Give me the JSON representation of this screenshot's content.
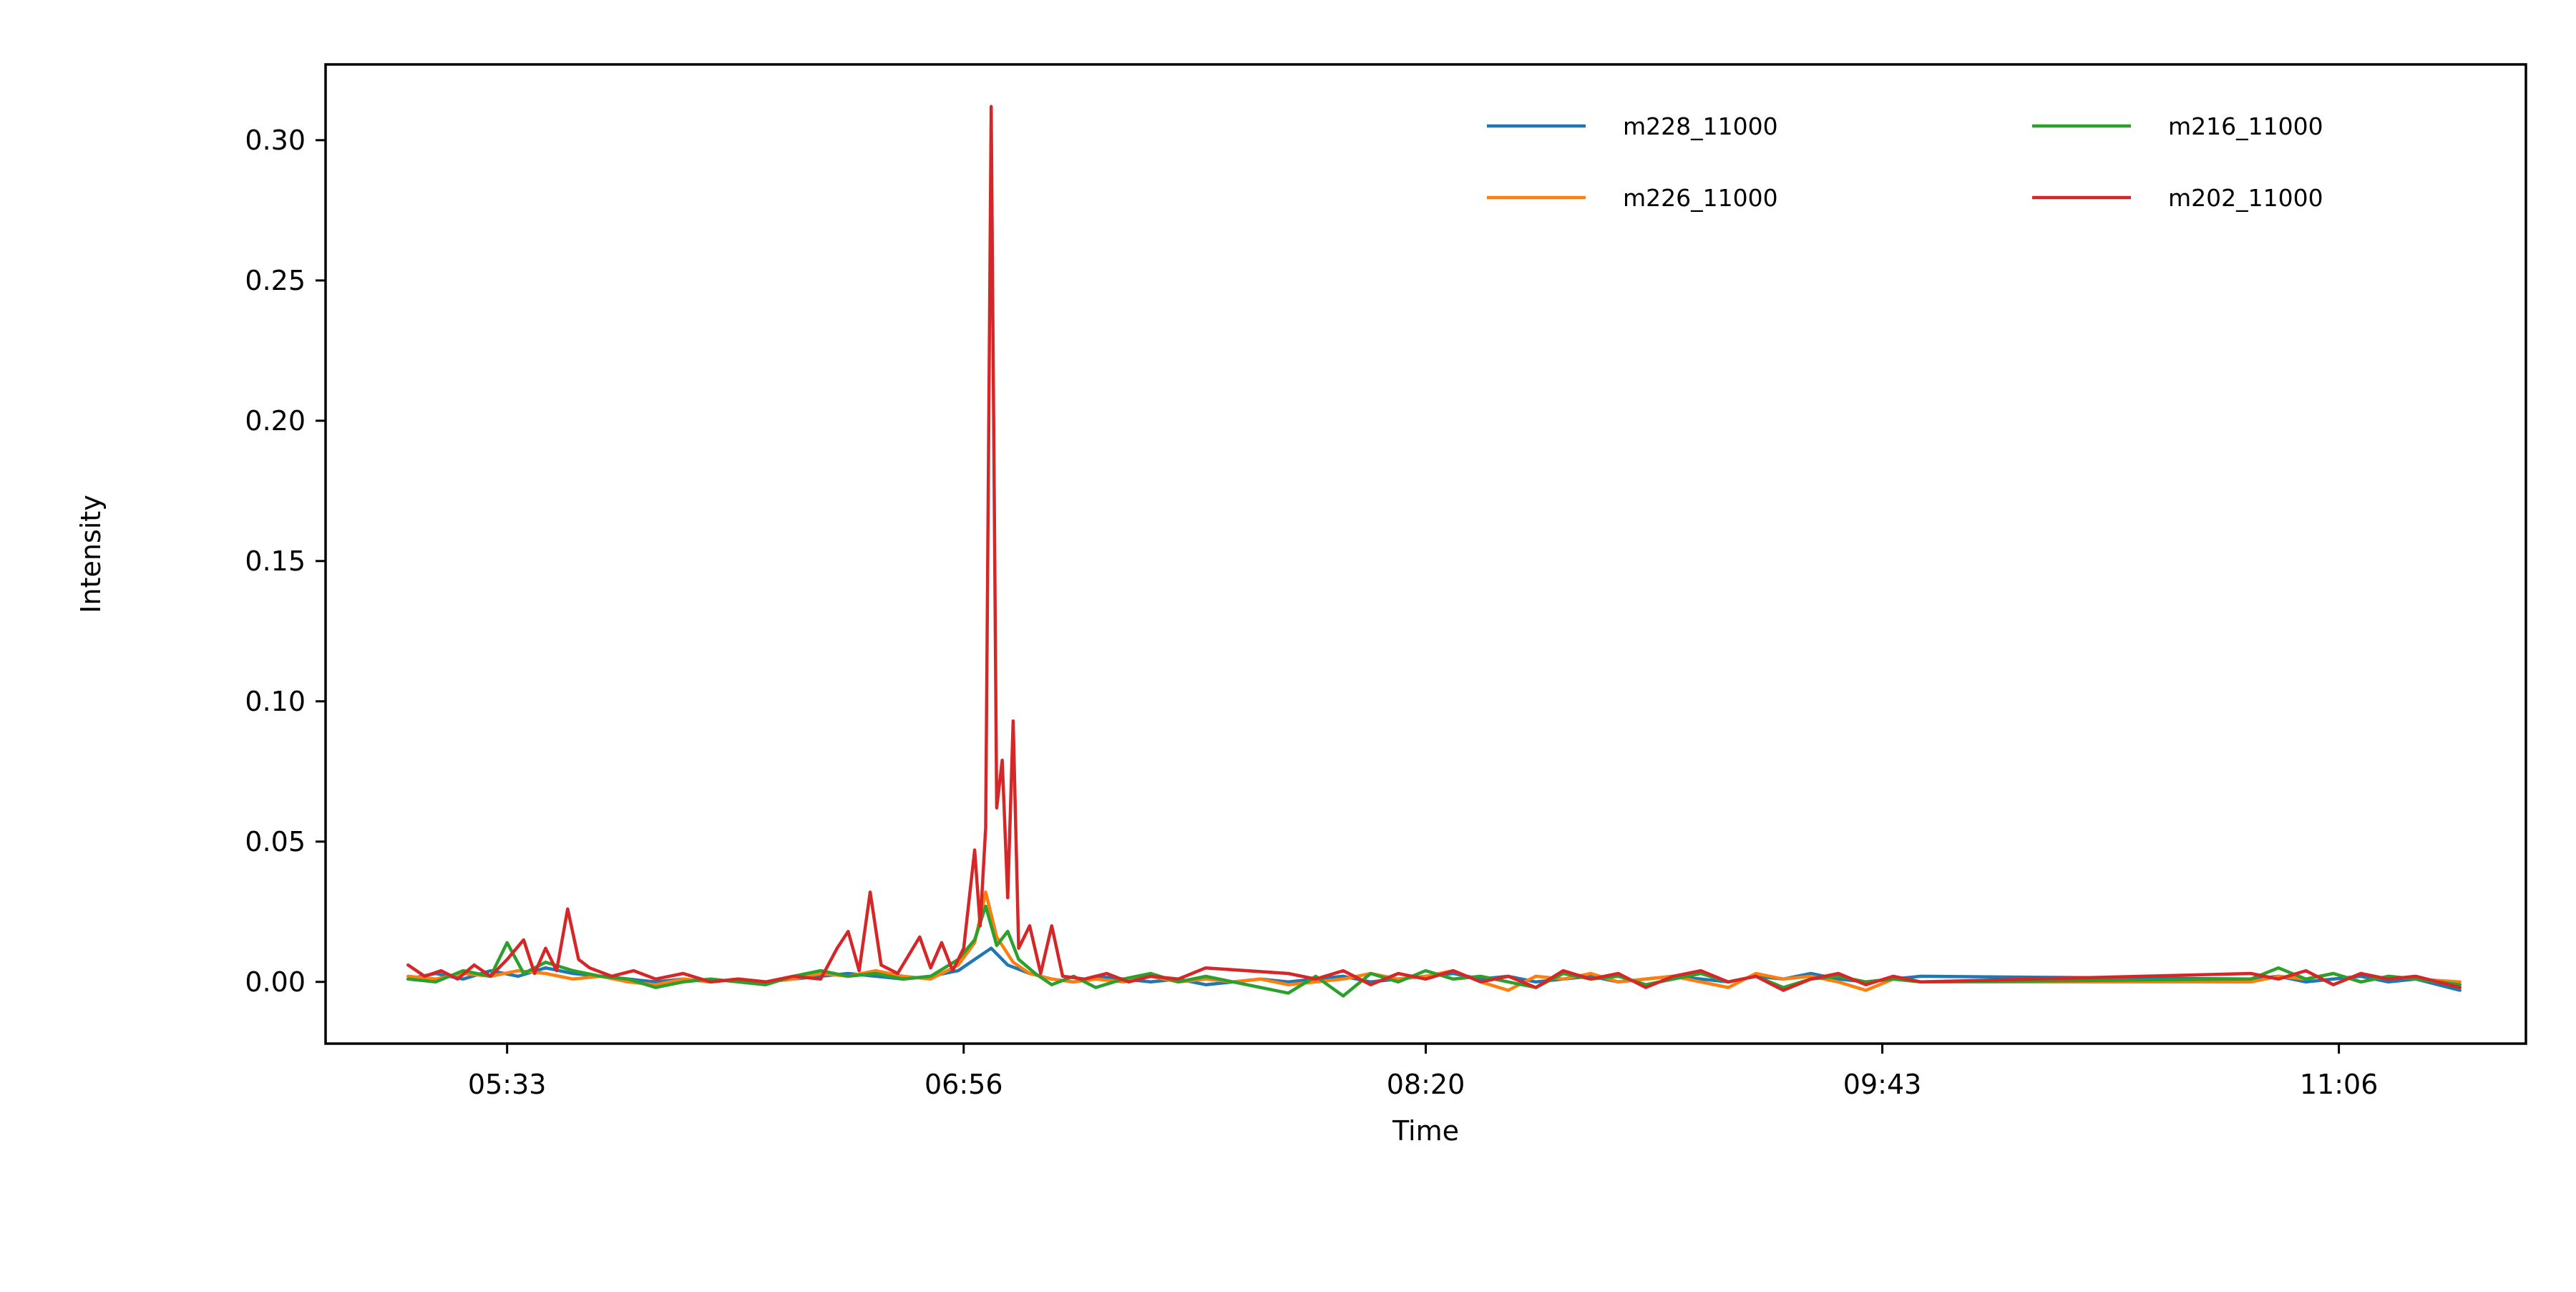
{
  "chart_data": {
    "type": "line",
    "title": "",
    "xlabel": "Time",
    "ylabel": "Intensity",
    "xlim": [
      "05:00",
      "11:40"
    ],
    "ylim": [
      -0.022,
      0.327
    ],
    "x_ticks": [
      "05:33",
      "06:56",
      "08:20",
      "09:43",
      "11:06"
    ],
    "y_ticks": [
      "0.00",
      "0.05",
      "0.10",
      "0.15",
      "0.20",
      "0.25",
      "0.30"
    ],
    "y_tick_values": [
      0,
      0.05,
      0.1,
      0.15,
      0.2,
      0.25,
      0.3
    ],
    "grid": false,
    "legend": {
      "position": "top-right",
      "columns": 2
    },
    "series": [
      {
        "name": "m228_11000",
        "color": "#1f77b4",
        "points": [
          [
            "05:15",
            0.001
          ],
          [
            "05:20",
            0.003
          ],
          [
            "05:25",
            0.001
          ],
          [
            "05:30",
            0.004
          ],
          [
            "05:35",
            0.002
          ],
          [
            "05:40",
            0.005
          ],
          [
            "05:45",
            0.003
          ],
          [
            "05:50",
            0.002
          ],
          [
            "05:55",
            0.001
          ],
          [
            "06:00",
            0.0
          ],
          [
            "06:05",
            0.001
          ],
          [
            "06:10",
            0.0
          ],
          [
            "06:15",
            0.001
          ],
          [
            "06:20",
            0.0
          ],
          [
            "06:25",
            0.001
          ],
          [
            "06:30",
            0.002
          ],
          [
            "06:35",
            0.003
          ],
          [
            "06:40",
            0.002
          ],
          [
            "06:45",
            0.001
          ],
          [
            "06:50",
            0.002
          ],
          [
            "06:55",
            0.004
          ],
          [
            "06:58",
            0.008
          ],
          [
            "07:01",
            0.012
          ],
          [
            "07:04",
            0.006
          ],
          [
            "07:08",
            0.003
          ],
          [
            "07:12",
            0.001
          ],
          [
            "07:16",
            0.0
          ],
          [
            "07:20",
            0.002
          ],
          [
            "07:25",
            0.001
          ],
          [
            "07:30",
            0.0
          ],
          [
            "07:35",
            0.001
          ],
          [
            "07:40",
            -0.001
          ],
          [
            "07:45",
            0.0
          ],
          [
            "07:50",
            0.001
          ],
          [
            "07:55",
            0.0
          ],
          [
            "08:00",
            0.001
          ],
          [
            "08:05",
            0.002
          ],
          [
            "08:10",
            0.0
          ],
          [
            "08:15",
            0.001
          ],
          [
            "08:20",
            0.002
          ],
          [
            "08:25",
            0.003
          ],
          [
            "08:30",
            0.001
          ],
          [
            "08:35",
            0.002
          ],
          [
            "08:40",
            0.0
          ],
          [
            "08:45",
            0.001
          ],
          [
            "08:50",
            0.002
          ],
          [
            "08:55",
            0.0
          ],
          [
            "09:00",
            0.001
          ],
          [
            "09:05",
            0.002
          ],
          [
            "09:10",
            0.001
          ],
          [
            "09:15",
            0.0
          ],
          [
            "09:20",
            0.002
          ],
          [
            "09:25",
            0.001
          ],
          [
            "09:30",
            0.003
          ],
          [
            "09:35",
            0.001
          ],
          [
            "09:40",
            0.0
          ],
          [
            "09:45",
            0.001
          ],
          [
            "09:50",
            0.002
          ],
          [
            "10:50",
            0.001
          ],
          [
            "10:55",
            0.002
          ],
          [
            "11:00",
            0.0
          ],
          [
            "11:05",
            0.001
          ],
          [
            "11:10",
            0.002
          ],
          [
            "11:15",
            0.0
          ],
          [
            "11:20",
            0.001
          ],
          [
            "11:28",
            -0.003
          ]
        ]
      },
      {
        "name": "m226_11000",
        "color": "#ff7f0e",
        "points": [
          [
            "05:15",
            0.002
          ],
          [
            "05:20",
            0.001
          ],
          [
            "05:25",
            0.003
          ],
          [
            "05:30",
            0.002
          ],
          [
            "05:35",
            0.004
          ],
          [
            "05:40",
            0.003
          ],
          [
            "05:45",
            0.001
          ],
          [
            "05:50",
            0.002
          ],
          [
            "05:55",
            0.0
          ],
          [
            "06:00",
            -0.001
          ],
          [
            "06:05",
            0.001
          ],
          [
            "06:10",
            0.0
          ],
          [
            "06:15",
            0.001
          ],
          [
            "06:20",
            0.0
          ],
          [
            "06:25",
            0.001
          ],
          [
            "06:30",
            0.003
          ],
          [
            "06:35",
            0.002
          ],
          [
            "06:40",
            0.004
          ],
          [
            "06:45",
            0.002
          ],
          [
            "06:50",
            0.001
          ],
          [
            "06:55",
            0.006
          ],
          [
            "06:58",
            0.014
          ],
          [
            "07:00",
            0.032
          ],
          [
            "07:02",
            0.016
          ],
          [
            "07:05",
            0.007
          ],
          [
            "07:08",
            0.003
          ],
          [
            "07:12",
            0.001
          ],
          [
            "07:16",
            0.0
          ],
          [
            "07:20",
            0.001
          ],
          [
            "07:25",
            0.0
          ],
          [
            "07:30",
            0.002
          ],
          [
            "07:35",
            0.0
          ],
          [
            "07:40",
            0.001
          ],
          [
            "07:45",
            0.0
          ],
          [
            "07:50",
            0.001
          ],
          [
            "07:55",
            -0.001
          ],
          [
            "08:00",
            0.0
          ],
          [
            "08:05",
            0.001
          ],
          [
            "08:10",
            0.003
          ],
          [
            "08:15",
            0.001
          ],
          [
            "08:20",
            0.002
          ],
          [
            "08:25",
            0.004
          ],
          [
            "08:30",
            0.0
          ],
          [
            "08:35",
            -0.003
          ],
          [
            "08:40",
            0.002
          ],
          [
            "08:45",
            0.001
          ],
          [
            "08:50",
            0.003
          ],
          [
            "08:55",
            0.0
          ],
          [
            "09:00",
            0.001
          ],
          [
            "09:05",
            0.002
          ],
          [
            "09:10",
            0.0
          ],
          [
            "09:15",
            -0.002
          ],
          [
            "09:20",
            0.003
          ],
          [
            "09:25",
            0.001
          ],
          [
            "09:30",
            0.002
          ],
          [
            "09:35",
            0.0
          ],
          [
            "09:40",
            -0.003
          ],
          [
            "09:45",
            0.001
          ],
          [
            "09:50",
            0.0
          ],
          [
            "10:50",
            0.0
          ],
          [
            "10:55",
            0.002
          ],
          [
            "11:00",
            0.001
          ],
          [
            "11:05",
            0.003
          ],
          [
            "11:10",
            0.0
          ],
          [
            "11:15",
            0.002
          ],
          [
            "11:20",
            0.001
          ],
          [
            "11:28",
            0.0
          ]
        ]
      },
      {
        "name": "m216_11000",
        "color": "#2ca02c",
        "points": [
          [
            "05:15",
            0.001
          ],
          [
            "05:20",
            0.0
          ],
          [
            "05:25",
            0.004
          ],
          [
            "05:30",
            0.002
          ],
          [
            "05:33",
            0.014
          ],
          [
            "05:36",
            0.003
          ],
          [
            "05:40",
            0.007
          ],
          [
            "05:45",
            0.004
          ],
          [
            "05:50",
            0.002
          ],
          [
            "05:55",
            0.001
          ],
          [
            "06:00",
            -0.002
          ],
          [
            "06:05",
            0.0
          ],
          [
            "06:10",
            0.001
          ],
          [
            "06:15",
            0.0
          ],
          [
            "06:20",
            -0.001
          ],
          [
            "06:25",
            0.002
          ],
          [
            "06:30",
            0.004
          ],
          [
            "06:35",
            0.002
          ],
          [
            "06:40",
            0.003
          ],
          [
            "06:45",
            0.001
          ],
          [
            "06:50",
            0.002
          ],
          [
            "06:55",
            0.008
          ],
          [
            "06:58",
            0.015
          ],
          [
            "07:00",
            0.027
          ],
          [
            "07:02",
            0.013
          ],
          [
            "07:04",
            0.018
          ],
          [
            "07:06",
            0.008
          ],
          [
            "07:09",
            0.003
          ],
          [
            "07:12",
            -0.001
          ],
          [
            "07:16",
            0.002
          ],
          [
            "07:20",
            -0.002
          ],
          [
            "07:25",
            0.001
          ],
          [
            "07:30",
            0.003
          ],
          [
            "07:35",
            0.0
          ],
          [
            "07:40",
            0.002
          ],
          [
            "07:45",
            0.0
          ],
          [
            "07:55",
            -0.004
          ],
          [
            "08:00",
            0.002
          ],
          [
            "08:05",
            -0.005
          ],
          [
            "08:10",
            0.003
          ],
          [
            "08:15",
            0.0
          ],
          [
            "08:20",
            0.004
          ],
          [
            "08:25",
            0.001
          ],
          [
            "08:30",
            0.002
          ],
          [
            "08:35",
            0.0
          ],
          [
            "08:40",
            -0.002
          ],
          [
            "08:45",
            0.003
          ],
          [
            "08:50",
            0.001
          ],
          [
            "08:55",
            0.002
          ],
          [
            "09:00",
            -0.001
          ],
          [
            "09:05",
            0.001
          ],
          [
            "09:10",
            0.003
          ],
          [
            "09:15",
            0.0
          ],
          [
            "09:20",
            0.002
          ],
          [
            "09:25",
            -0.002
          ],
          [
            "09:30",
            0.001
          ],
          [
            "09:35",
            0.002
          ],
          [
            "09:40",
            0.0
          ],
          [
            "09:45",
            0.001
          ],
          [
            "09:50",
            0.0
          ],
          [
            "10:50",
            0.001
          ],
          [
            "10:55",
            0.005
          ],
          [
            "11:00",
            0.001
          ],
          [
            "11:05",
            0.003
          ],
          [
            "11:10",
            0.0
          ],
          [
            "11:15",
            0.002
          ],
          [
            "11:20",
            0.001
          ],
          [
            "11:28",
            -0.001
          ]
        ]
      },
      {
        "name": "m202_11000",
        "color": "#d62728",
        "points": [
          [
            "05:15",
            0.006
          ],
          [
            "05:18",
            0.002
          ],
          [
            "05:21",
            0.004
          ],
          [
            "05:24",
            0.001
          ],
          [
            "05:27",
            0.006
          ],
          [
            "05:30",
            0.002
          ],
          [
            "05:33",
            0.008
          ],
          [
            "05:36",
            0.015
          ],
          [
            "05:38",
            0.003
          ],
          [
            "05:40",
            0.012
          ],
          [
            "05:42",
            0.004
          ],
          [
            "05:44",
            0.026
          ],
          [
            "05:46",
            0.008
          ],
          [
            "05:48",
            0.005
          ],
          [
            "05:52",
            0.002
          ],
          [
            "05:56",
            0.004
          ],
          [
            "06:00",
            0.001
          ],
          [
            "06:05",
            0.003
          ],
          [
            "06:10",
            0.0
          ],
          [
            "06:15",
            0.001
          ],
          [
            "06:20",
            0.0
          ],
          [
            "06:25",
            0.002
          ],
          [
            "06:30",
            0.001
          ],
          [
            "06:33",
            0.012
          ],
          [
            "06:35",
            0.018
          ],
          [
            "06:37",
            0.004
          ],
          [
            "06:39",
            0.032
          ],
          [
            "06:41",
            0.006
          ],
          [
            "06:44",
            0.003
          ],
          [
            "06:48",
            0.016
          ],
          [
            "06:50",
            0.005
          ],
          [
            "06:52",
            0.014
          ],
          [
            "06:54",
            0.004
          ],
          [
            "06:56",
            0.012
          ],
          [
            "06:58",
            0.047
          ],
          [
            "06:59",
            0.02
          ],
          [
            "07:00",
            0.055
          ],
          [
            "07:01",
            0.312
          ],
          [
            "07:02",
            0.062
          ],
          [
            "07:03",
            0.079
          ],
          [
            "07:04",
            0.03
          ],
          [
            "07:05",
            0.093
          ],
          [
            "07:06",
            0.012
          ],
          [
            "07:08",
            0.02
          ],
          [
            "07:10",
            0.003
          ],
          [
            "07:12",
            0.02
          ],
          [
            "07:14",
            0.002
          ],
          [
            "07:18",
            0.001
          ],
          [
            "07:22",
            0.003
          ],
          [
            "07:26",
            0.0
          ],
          [
            "07:30",
            0.002
          ],
          [
            "07:35",
            0.001
          ],
          [
            "07:40",
            0.005
          ],
          [
            "07:55",
            0.003
          ],
          [
            "08:00",
            0.001
          ],
          [
            "08:05",
            0.004
          ],
          [
            "08:10",
            -0.001
          ],
          [
            "08:15",
            0.003
          ],
          [
            "08:20",
            0.001
          ],
          [
            "08:25",
            0.004
          ],
          [
            "08:30",
            0.0
          ],
          [
            "08:35",
            0.002
          ],
          [
            "08:40",
            -0.002
          ],
          [
            "08:45",
            0.004
          ],
          [
            "08:50",
            0.001
          ],
          [
            "08:55",
            0.003
          ],
          [
            "09:00",
            -0.002
          ],
          [
            "09:05",
            0.002
          ],
          [
            "09:10",
            0.004
          ],
          [
            "09:15",
            0.0
          ],
          [
            "09:20",
            0.002
          ],
          [
            "09:25",
            -0.003
          ],
          [
            "09:30",
            0.001
          ],
          [
            "09:35",
            0.003
          ],
          [
            "09:40",
            -0.001
          ],
          [
            "09:45",
            0.002
          ],
          [
            "09:50",
            0.0
          ],
          [
            "10:50",
            0.003
          ],
          [
            "10:55",
            0.001
          ],
          [
            "11:00",
            0.004
          ],
          [
            "11:05",
            -0.001
          ],
          [
            "11:10",
            0.003
          ],
          [
            "11:15",
            0.001
          ],
          [
            "11:20",
            0.002
          ],
          [
            "11:28",
            -0.002
          ]
        ]
      }
    ]
  }
}
